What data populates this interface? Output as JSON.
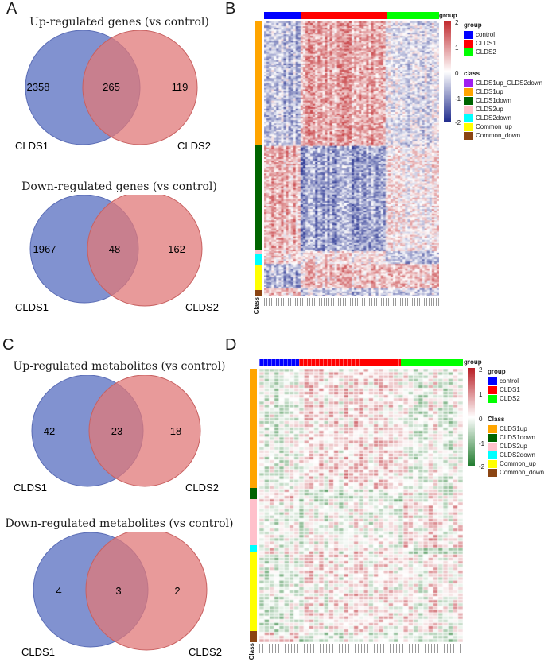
{
  "figure": {
    "panels": [
      {
        "letter": "A"
      },
      {
        "letter": "B"
      },
      {
        "letter": "C"
      },
      {
        "letter": "D"
      }
    ]
  },
  "venns": [
    {
      "title": "Up-regulated genes (vs control)",
      "left_only": "2358",
      "overlap": "265",
      "right_only": "119",
      "left_label": "CLDS1",
      "right_label": "CLDS2"
    },
    {
      "title": "Down-regulated genes (vs control)",
      "left_only": "1967",
      "overlap": "48",
      "right_only": "162",
      "left_label": "CLDS1",
      "right_label": "CLDS2"
    },
    {
      "title": "Up-regulated metabolites (vs control)",
      "left_only": "42",
      "overlap": "23",
      "right_only": "18",
      "left_label": "CLDS1",
      "right_label": "CLDS2"
    },
    {
      "title": "Down-regulated metabolites (vs control)",
      "left_only": "4",
      "overlap": "3",
      "right_only": "2",
      "left_label": "CLDS1",
      "right_label": "CLDS2"
    }
  ],
  "colors": {
    "venn_left": "#6b7fc8",
    "venn_right": "#e07878",
    "hmB_low": "#1e2a8c",
    "hmB_high": "#c0282c",
    "hmD_low": "#1e7a2c",
    "hmD_high": "#b81c24"
  },
  "heatmapB": {
    "group_label": "group",
    "class_label": "Class",
    "scale_ticks": [
      "2",
      "1",
      "0",
      "-1",
      "-2"
    ],
    "legend_group_title": "group",
    "legend_group": [
      {
        "label": "control",
        "color": "#0000ff"
      },
      {
        "label": "CLDS1",
        "color": "#ff0000"
      },
      {
        "label": "CLDS2",
        "color": "#00ff00"
      }
    ],
    "legend_class_title": "class",
    "legend_class": [
      {
        "label": "CLDS1up_CLDS2down",
        "color": "#a020f0"
      },
      {
        "label": "CLDS1up",
        "color": "#ffa500"
      },
      {
        "label": "CLDS1down",
        "color": "#006400"
      },
      {
        "label": "CLDS2up",
        "color": "#ffc0cb"
      },
      {
        "label": "CLDS2down",
        "color": "#00ffff"
      },
      {
        "label": "Common_up",
        "color": "#ffff00"
      },
      {
        "label": "Common_down",
        "color": "#8b4513"
      }
    ]
  },
  "heatmapD": {
    "group_label": "group",
    "class_label": "Class",
    "scale_ticks": [
      "2",
      "1",
      "0",
      "-1",
      "-2"
    ],
    "legend_group_title": "group",
    "legend_group": [
      {
        "label": "control",
        "color": "#0000ff"
      },
      {
        "label": "CLDS1",
        "color": "#ff0000"
      },
      {
        "label": "CLDS2",
        "color": "#00ff00"
      }
    ],
    "legend_class_title": "Class",
    "legend_class": [
      {
        "label": "CLDS1up",
        "color": "#ffa500"
      },
      {
        "label": "CLDS1down",
        "color": "#006400"
      },
      {
        "label": "CLDS2up",
        "color": "#ffc0cb"
      },
      {
        "label": "CLDS2down",
        "color": "#00ffff"
      },
      {
        "label": "Common_up",
        "color": "#ffff00"
      },
      {
        "label": "Common_down",
        "color": "#8b4513"
      }
    ]
  }
}
